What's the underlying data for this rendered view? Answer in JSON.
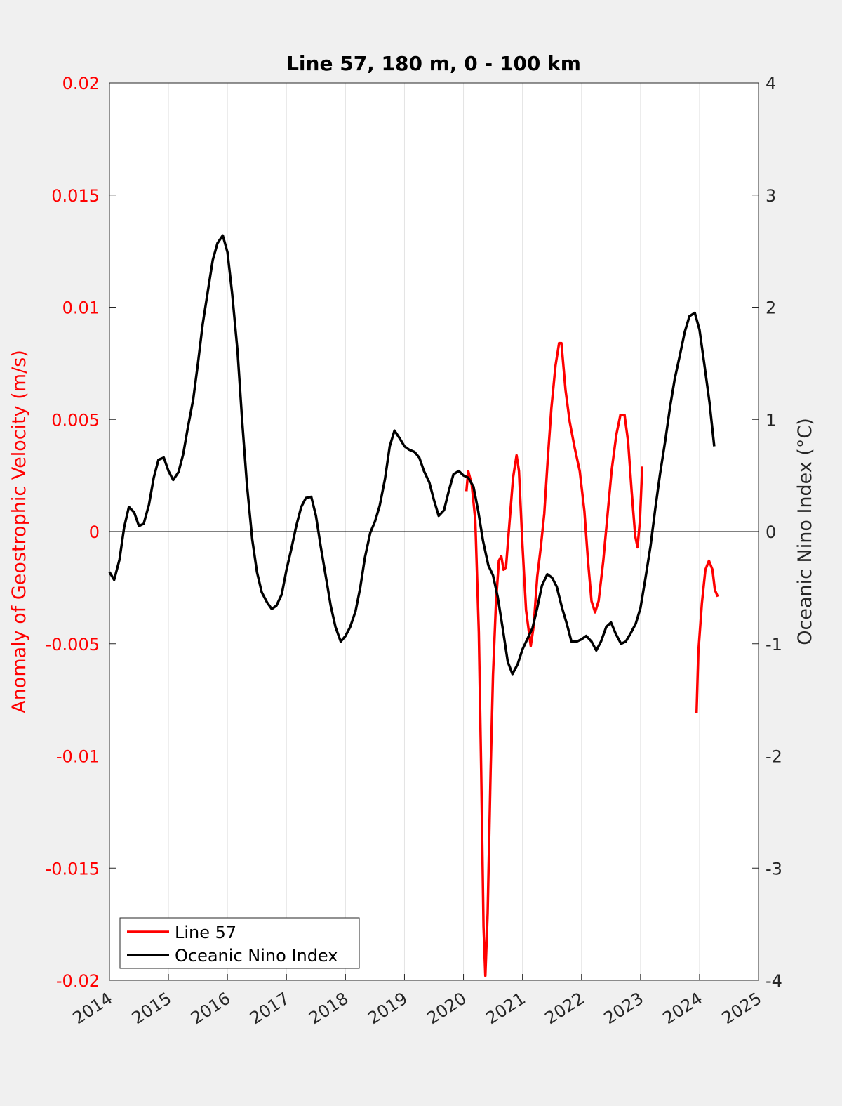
{
  "chart_data": {
    "type": "line",
    "title": "Line 57, 180 m, 0 - 100 km",
    "ylabel": "Anomaly of Geostrophic Velocity (m/s)",
    "y2label": "Oceanic Nino Index (°C)",
    "xlim": [
      2014,
      2025
    ],
    "xticks": [
      2014,
      2015,
      2016,
      2017,
      2018,
      2019,
      2020,
      2021,
      2022,
      2023,
      2024,
      2025
    ],
    "ylim": [
      -0.02,
      0.02
    ],
    "yticks": [
      -0.02,
      -0.015,
      -0.01,
      -0.005,
      0,
      0.005,
      0.01,
      0.015,
      0.02
    ],
    "y2lim": [
      -4,
      4
    ],
    "y2ticks": [
      -4,
      -3,
      -2,
      -1,
      0,
      1,
      2,
      3,
      4
    ],
    "xgrid": true,
    "reference_line": 0,
    "legend": "lower left",
    "series": [
      {
        "name": "Line 57",
        "color": "#ff0000",
        "x": [
          2020.05,
          2020.08,
          2020.14,
          2020.2,
          2020.26,
          2020.3,
          2020.34,
          2020.37,
          2020.41,
          2020.46,
          2020.5,
          2020.55,
          2020.6,
          2020.64,
          2020.68,
          2020.72,
          2020.78,
          2020.84,
          2020.9,
          2020.94,
          2021.0,
          2021.06,
          2021.14,
          2021.19,
          2021.25,
          2021.31,
          2021.37,
          2021.43,
          2021.49,
          2021.56,
          2021.62,
          2021.66,
          2021.73,
          2021.8,
          2021.88,
          2021.97,
          2022.05,
          2022.11,
          2022.17,
          2022.23,
          2022.29,
          2022.37,
          2022.44,
          2022.51,
          2022.59,
          2022.66,
          2022.73,
          2022.79,
          2022.85,
          2022.91,
          2022.95,
          2022.99,
          2023.03,
          2023.5,
          2023.95,
          2023.98,
          2024.04,
          2024.1,
          2024.16,
          2024.22,
          2024.26,
          2024.31
        ],
        "values": [
          0.0018,
          0.0027,
          0.0021,
          0.0005,
          -0.0045,
          -0.0107,
          -0.0176,
          -0.0198,
          -0.017,
          -0.0107,
          -0.0064,
          -0.0032,
          -0.0013,
          -0.0011,
          -0.0017,
          -0.0016,
          0.0004,
          0.0024,
          0.0034,
          0.0027,
          -0.0006,
          -0.0035,
          -0.0051,
          -0.0042,
          -0.002,
          -0.0007,
          0.0008,
          0.0033,
          0.0055,
          0.0074,
          0.0084,
          0.0084,
          0.0063,
          0.0049,
          0.0038,
          0.0027,
          0.0009,
          -0.0013,
          -0.0031,
          -0.0036,
          -0.0031,
          -0.0013,
          0.0007,
          0.0027,
          0.0043,
          0.0052,
          0.0052,
          0.004,
          0.0018,
          -0.0002,
          -0.0007,
          0.0005,
          0.0029,
          null,
          -0.0081,
          -0.0054,
          -0.0032,
          -0.0017,
          -0.0013,
          -0.0017,
          -0.0026,
          -0.0029
        ]
      },
      {
        "name": "Oceanic Nino Index",
        "color": "#000000",
        "axis": "y2",
        "x": [
          2014.0,
          2014.08,
          2014.17,
          2014.25,
          2014.33,
          2014.42,
          2014.5,
          2014.58,
          2014.67,
          2014.75,
          2014.83,
          2014.92,
          2015.0,
          2015.08,
          2015.17,
          2015.25,
          2015.33,
          2015.42,
          2015.5,
          2015.58,
          2015.67,
          2015.75,
          2015.83,
          2015.92,
          2016.0,
          2016.08,
          2016.17,
          2016.25,
          2016.33,
          2016.42,
          2016.5,
          2016.58,
          2016.67,
          2016.75,
          2016.83,
          2016.92,
          2017.0,
          2017.08,
          2017.17,
          2017.25,
          2017.33,
          2017.42,
          2017.5,
          2017.58,
          2017.67,
          2017.75,
          2017.83,
          2017.92,
          2018.0,
          2018.08,
          2018.17,
          2018.25,
          2018.33,
          2018.42,
          2018.5,
          2018.58,
          2018.67,
          2018.75,
          2018.83,
          2018.92,
          2019.0,
          2019.08,
          2019.17,
          2019.25,
          2019.33,
          2019.42,
          2019.5,
          2019.58,
          2019.67,
          2019.75,
          2019.83,
          2019.92,
          2020.0,
          2020.08,
          2020.17,
          2020.25,
          2020.33,
          2020.42,
          2020.5,
          2020.58,
          2020.67,
          2020.75,
          2020.83,
          2020.92,
          2021.0,
          2021.08,
          2021.17,
          2021.25,
          2021.33,
          2021.42,
          2021.5,
          2021.58,
          2021.67,
          2021.75,
          2021.83,
          2021.92,
          2022.0,
          2022.08,
          2022.17,
          2022.25,
          2022.33,
          2022.42,
          2022.5,
          2022.58,
          2022.67,
          2022.75,
          2022.83,
          2022.92,
          2023.0,
          2023.08,
          2023.17,
          2023.25,
          2023.33,
          2023.42,
          2023.5,
          2023.58,
          2023.67,
          2023.75,
          2023.83,
          2023.92,
          2024.0,
          2024.08,
          2024.17,
          2024.25
        ],
        "values": [
          -0.36,
          -0.43,
          -0.25,
          0.04,
          0.22,
          0.17,
          0.05,
          0.07,
          0.24,
          0.48,
          0.64,
          0.66,
          0.54,
          0.46,
          0.53,
          0.69,
          0.93,
          1.18,
          1.5,
          1.85,
          2.15,
          2.42,
          2.57,
          2.64,
          2.49,
          2.12,
          1.61,
          0.98,
          0.42,
          -0.07,
          -0.36,
          -0.54,
          -0.63,
          -0.69,
          -0.66,
          -0.56,
          -0.34,
          -0.16,
          0.06,
          0.22,
          0.3,
          0.31,
          0.14,
          -0.13,
          -0.41,
          -0.66,
          -0.85,
          -0.98,
          -0.93,
          -0.85,
          -0.71,
          -0.5,
          -0.23,
          -0.01,
          0.09,
          0.23,
          0.47,
          0.76,
          0.9,
          0.83,
          0.76,
          0.73,
          0.71,
          0.66,
          0.54,
          0.44,
          0.28,
          0.14,
          0.19,
          0.36,
          0.51,
          0.54,
          0.5,
          0.48,
          0.4,
          0.18,
          -0.08,
          -0.3,
          -0.39,
          -0.58,
          -0.88,
          -1.16,
          -1.27,
          -1.18,
          -1.05,
          -0.96,
          -0.86,
          -0.68,
          -0.48,
          -0.38,
          -0.41,
          -0.49,
          -0.68,
          -0.82,
          -0.98,
          -0.98,
          -0.96,
          -0.93,
          -0.98,
          -1.06,
          -0.98,
          -0.85,
          -0.81,
          -0.91,
          -1.0,
          -0.98,
          -0.91,
          -0.82,
          -0.68,
          -0.43,
          -0.13,
          0.2,
          0.51,
          0.81,
          1.11,
          1.36,
          1.58,
          1.78,
          1.92,
          1.95,
          1.8,
          1.5,
          1.15,
          0.76
        ]
      }
    ]
  }
}
